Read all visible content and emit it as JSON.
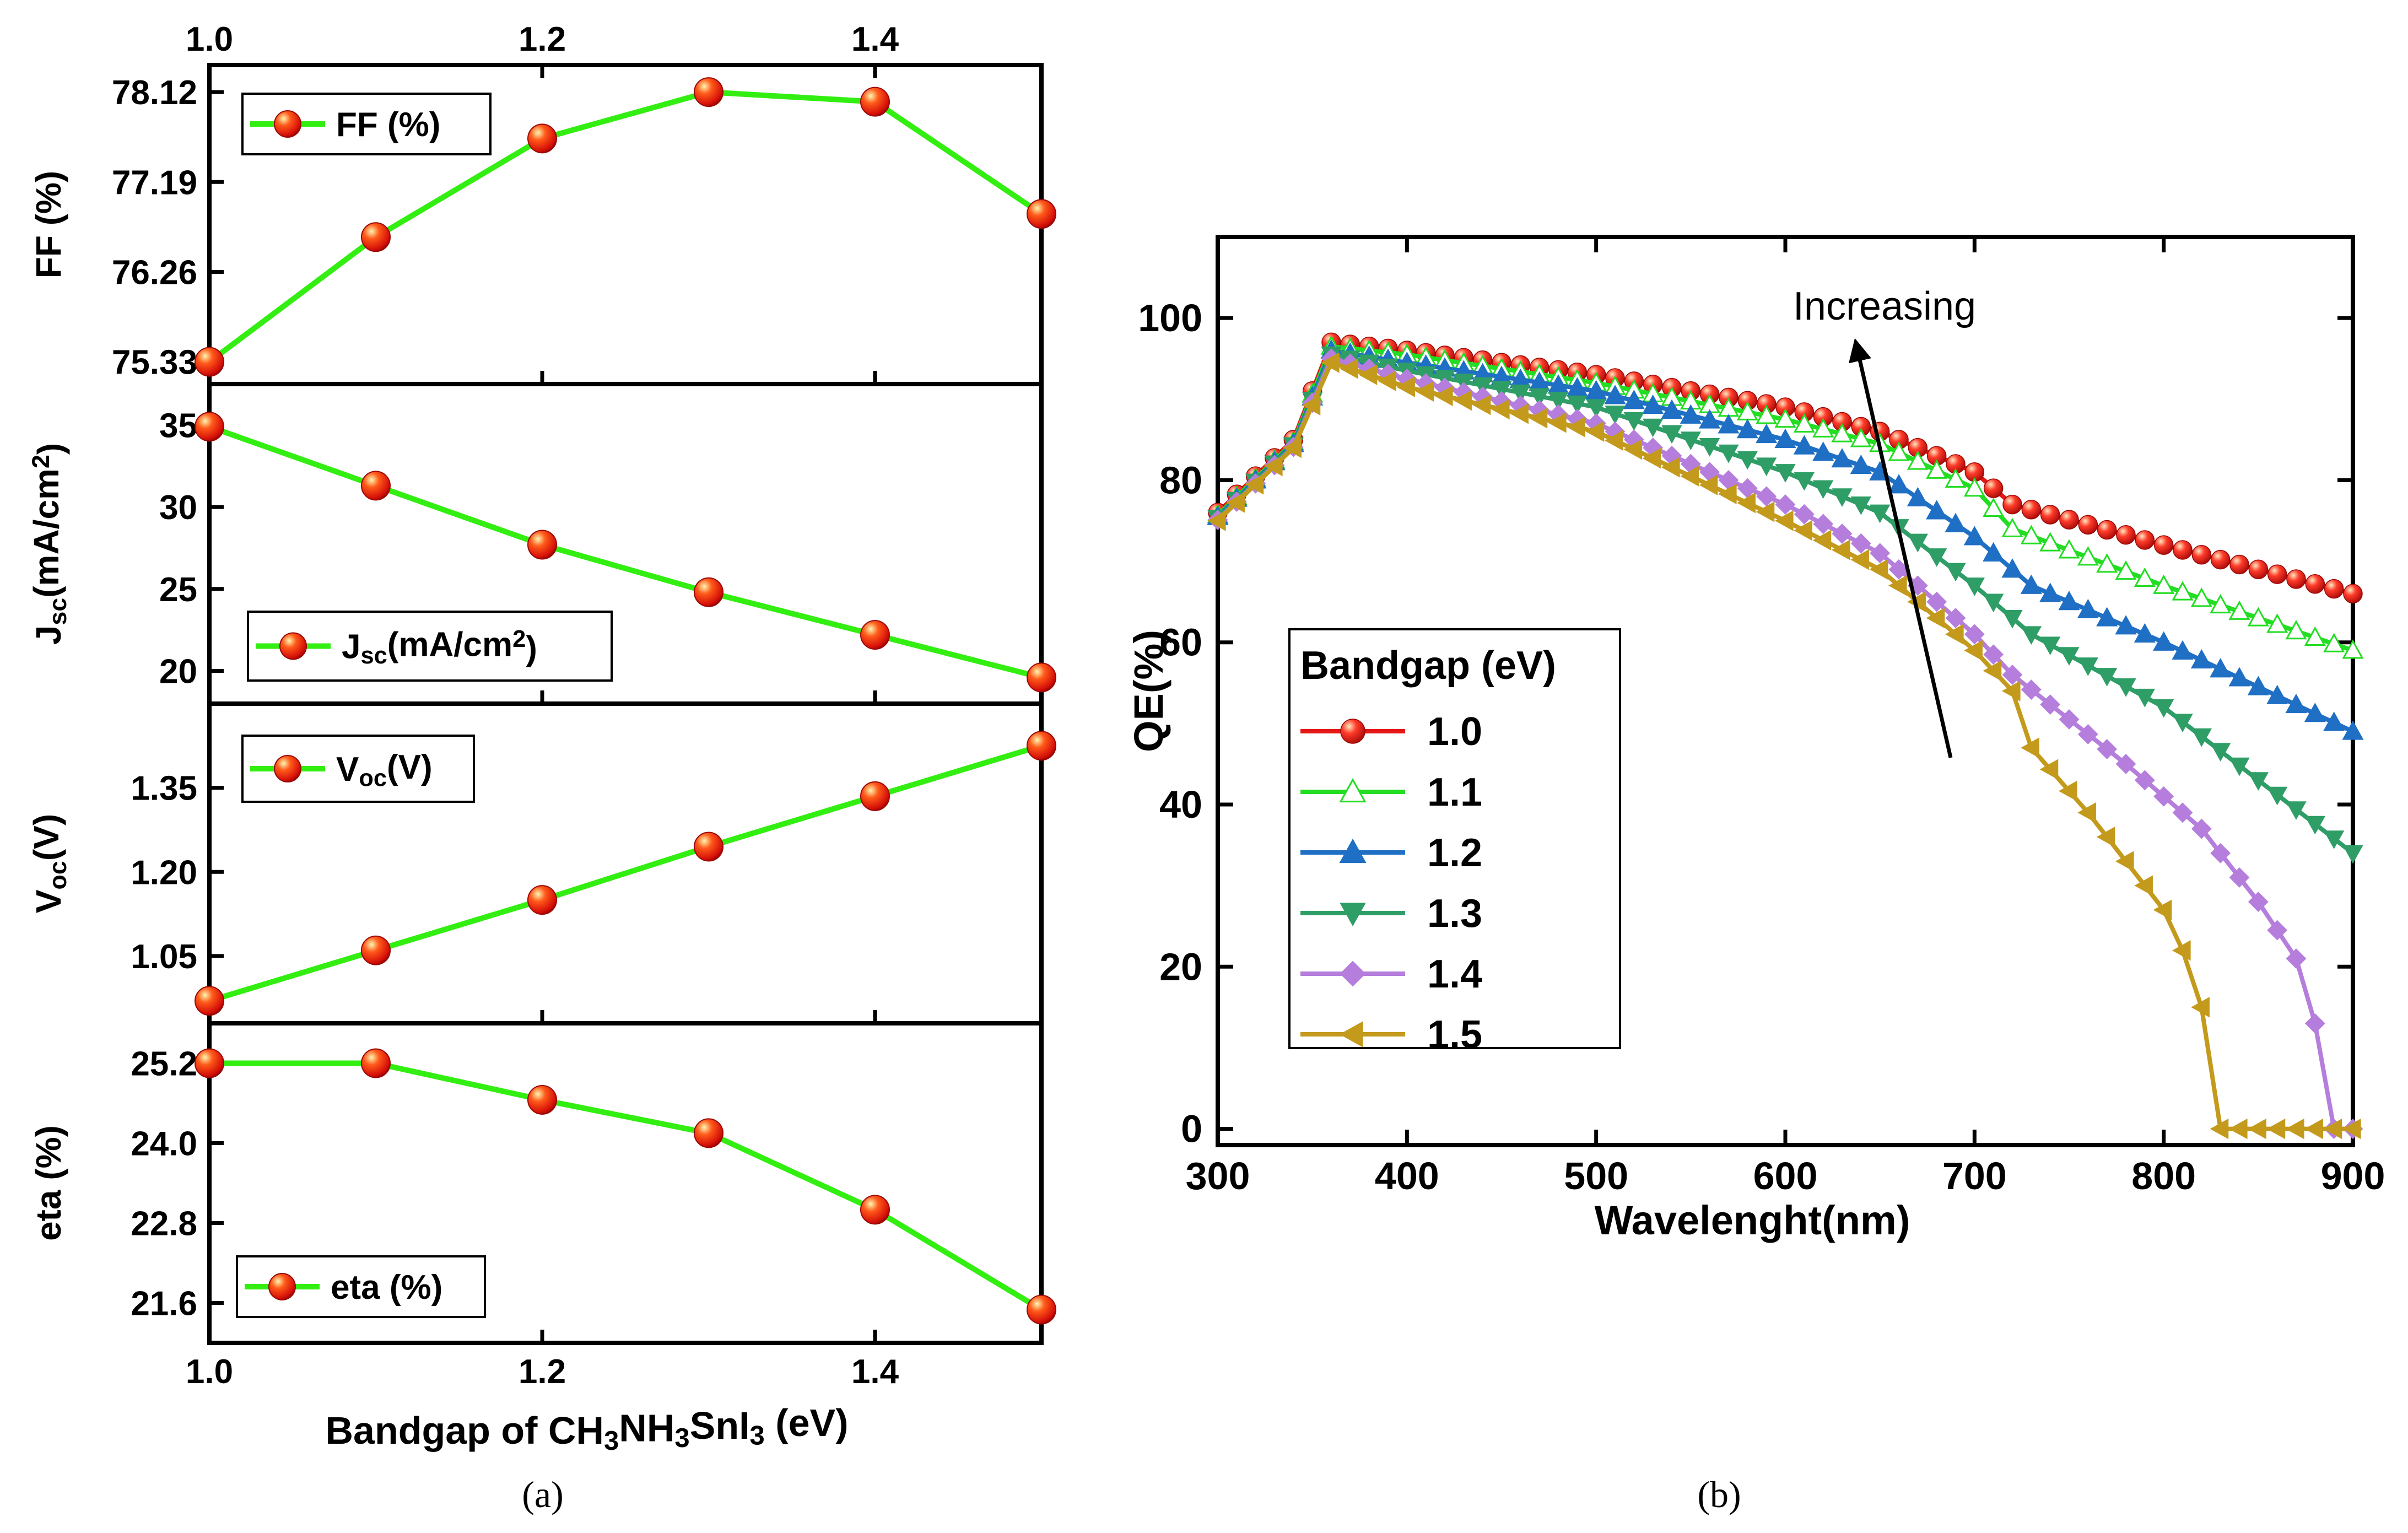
{
  "figure": {
    "caption_a": "(a)",
    "caption_b": "(b)"
  },
  "chart_data": [
    {
      "type": "line",
      "panel": "a",
      "x": [
        1.0,
        1.1,
        1.2,
        1.3,
        1.4,
        1.5
      ],
      "xlabel": "Bandgap of CH3NH3SnI3 (eV)",
      "xlim": [
        1.0,
        1.5
      ],
      "xticks": [
        "1.0",
        "1.2",
        "1.4"
      ],
      "xtick_values": [
        1.0,
        1.2,
        1.4
      ],
      "line_color": "#33ee11",
      "marker_color": "#ee1c0c",
      "subplots": [
        {
          "ylabel": "FF (%)",
          "legend": "FF (%)",
          "ylim": [
            75.1,
            78.4
          ],
          "yticks": [
            "75.33",
            "76.26",
            "77.19",
            "78.12"
          ],
          "ytick_values": [
            75.33,
            76.26,
            77.19,
            78.12
          ],
          "values": [
            75.33,
            76.62,
            77.64,
            78.12,
            78.02,
            76.86
          ]
        },
        {
          "ylabel": "Jsc(mA/cm2)",
          "legend": "Jsc(mA/cm2)",
          "ylim": [
            18.0,
            37.5
          ],
          "yticks": [
            "20",
            "25",
            "30",
            "35"
          ],
          "ytick_values": [
            20,
            25,
            30,
            35
          ],
          "values": [
            34.9,
            31.3,
            27.7,
            24.8,
            22.2,
            19.6
          ]
        },
        {
          "ylabel": "Voc(V)",
          "legend": "Voc(V)",
          "ylim": [
            0.93,
            1.5
          ],
          "yticks": [
            "1.05",
            "1.20",
            "1.35"
          ],
          "ytick_values": [
            1.05,
            1.2,
            1.35
          ],
          "values": [
            0.97,
            1.06,
            1.15,
            1.245,
            1.335,
            1.425
          ]
        },
        {
          "ylabel": "eta (%)",
          "legend": "eta (%)",
          "ylim": [
            21.0,
            25.8
          ],
          "yticks": [
            "21.6",
            "22.8",
            "24.0",
            "25.2"
          ],
          "ytick_values": [
            21.6,
            22.8,
            24.0,
            25.2
          ],
          "values": [
            25.2,
            25.2,
            24.65,
            24.15,
            23.0,
            21.5
          ]
        }
      ]
    },
    {
      "type": "line",
      "panel": "b",
      "xlabel": "Wavelenght(nm)",
      "ylabel": "QE(%)",
      "xlim": [
        300,
        900
      ],
      "ylim": [
        -2,
        110
      ],
      "xticks": [
        "300",
        "400",
        "500",
        "600",
        "700",
        "800",
        "900"
      ],
      "xtick_values": [
        300,
        400,
        500,
        600,
        700,
        800,
        900
      ],
      "yticks": [
        "0",
        "20",
        "40",
        "60",
        "80",
        "100"
      ],
      "ytick_values": [
        0,
        20,
        40,
        60,
        80,
        100
      ],
      "legend_title": "Bandgap (eV)",
      "annotation": "Increasing",
      "x_range": [
        300,
        900,
        10
      ],
      "series": [
        {
          "name": "1.0",
          "color": "#e61717",
          "marker": "sphere",
          "knots": [
            [
              300,
              76
            ],
            [
              340,
              85
            ],
            [
              360,
              97
            ],
            [
              400,
              96
            ],
            [
              500,
              93
            ],
            [
              600,
              89
            ],
            [
              650,
              86
            ],
            [
              700,
              81
            ],
            [
              720,
              77
            ],
            [
              800,
              72
            ],
            [
              900,
              66
            ]
          ]
        },
        {
          "name": "1.1",
          "color": "#22dd22",
          "marker": "triangle-up-open",
          "knots": [
            [
              300,
              75.7
            ],
            [
              340,
              84.7
            ],
            [
              360,
              96.5
            ],
            [
              400,
              95.5
            ],
            [
              500,
              92
            ],
            [
              600,
              87.5
            ],
            [
              650,
              84.5
            ],
            [
              700,
              79
            ],
            [
              720,
              74
            ],
            [
              800,
              67
            ],
            [
              900,
              59
            ]
          ]
        },
        {
          "name": "1.2",
          "color": "#1f6fc5",
          "marker": "triangle-up",
          "knots": [
            [
              300,
              75.5
            ],
            [
              340,
              84.5
            ],
            [
              360,
              96
            ],
            [
              400,
              94.5
            ],
            [
              500,
              91
            ],
            [
              600,
              85
            ],
            [
              650,
              81
            ],
            [
              700,
              73
            ],
            [
              730,
              67
            ],
            [
              800,
              60
            ],
            [
              900,
              49
            ]
          ]
        },
        {
          "name": "1.3",
          "color": "#2e9e66",
          "marker": "triangle-down",
          "knots": [
            [
              300,
              75.3
            ],
            [
              340,
              84.3
            ],
            [
              360,
              95.5
            ],
            [
              400,
              93.5
            ],
            [
              500,
              89
            ],
            [
              600,
              81
            ],
            [
              650,
              76
            ],
            [
              700,
              67
            ],
            [
              730,
              61
            ],
            [
              800,
              52
            ],
            [
              900,
              34
            ]
          ]
        },
        {
          "name": "1.4",
          "color": "#b57edc",
          "marker": "diamond",
          "knots": [
            [
              300,
              75.1
            ],
            [
              340,
              84.1
            ],
            [
              360,
              95
            ],
            [
              400,
              92.5
            ],
            [
              500,
              87
            ],
            [
              600,
              77
            ],
            [
              650,
              71
            ],
            [
              700,
              61
            ],
            [
              720,
              56
            ],
            [
              780,
              45
            ],
            [
              820,
              37
            ],
            [
              850,
              28
            ],
            [
              870,
              21
            ],
            [
              880,
              13
            ],
            [
              890,
              0
            ],
            [
              900,
              0
            ]
          ]
        },
        {
          "name": "1.5",
          "color": "#c49a1c",
          "marker": "triangle-left",
          "knots": [
            [
              300,
              75
            ],
            [
              340,
              84
            ],
            [
              360,
              94.5
            ],
            [
              400,
              91.5
            ],
            [
              500,
              86
            ],
            [
              600,
              75
            ],
            [
              650,
              69
            ],
            [
              700,
              59
            ],
            [
              720,
              54
            ],
            [
              730,
              47
            ],
            [
              760,
              39
            ],
            [
              780,
              33
            ],
            [
              800,
              27
            ],
            [
              810,
              22
            ],
            [
              820,
              15
            ],
            [
              830,
              0
            ],
            [
              900,
              0
            ]
          ]
        }
      ]
    }
  ]
}
